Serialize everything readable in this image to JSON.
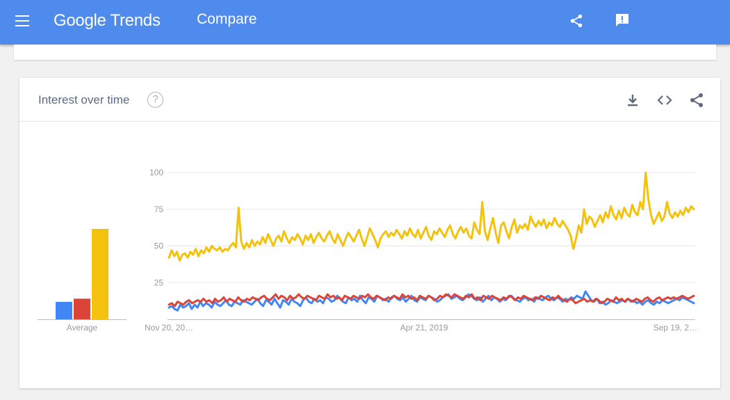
{
  "app": {
    "logo": "Google Trends",
    "page_title": "Compare"
  },
  "card": {
    "title": "Interest over time",
    "help_glyph": "?"
  },
  "icons": {
    "menu": "menu-icon",
    "share": "share-icon",
    "feedback": "feedback-icon",
    "help": "help-icon",
    "download": "download-icon",
    "embed": "embed-icon"
  },
  "colors": {
    "header": "#4f8bed",
    "series_blue": "#4285f4",
    "series_red": "#db4437",
    "series_yellow": "#f4c20d"
  },
  "chart_data": [
    {
      "type": "bar",
      "categories": [
        "",
        "",
        ""
      ],
      "xlabel": "Average",
      "values": [
        11,
        13,
        57
      ],
      "colors": [
        "#4285f4",
        "#db4437",
        "#f4c20d"
      ],
      "ylim": [
        0,
        100
      ]
    },
    {
      "type": "line",
      "x_ticks": [
        "Nov 20, 20…",
        "Apr 21, 2019",
        "Sep 19, 2…"
      ],
      "y_ticks": [
        25,
        50,
        75,
        100
      ],
      "ylim": [
        0,
        100
      ],
      "grid": true,
      "series": [
        {
          "color": "#f4c20d",
          "values": [
            42,
            47,
            43,
            46,
            40,
            44,
            45,
            42,
            46,
            44,
            48,
            43,
            47,
            45,
            49,
            46,
            50,
            48,
            47,
            49,
            46,
            48,
            47,
            50,
            52,
            49,
            76,
            53,
            48,
            52,
            49,
            54,
            50,
            53,
            51,
            56,
            52,
            58,
            54,
            50,
            55,
            57,
            53,
            60,
            55,
            52,
            56,
            54,
            58,
            55,
            51,
            57,
            54,
            58,
            52,
            56,
            59,
            55,
            53,
            57,
            60,
            55,
            52,
            58,
            54,
            50,
            55,
            59,
            56,
            53,
            57,
            61,
            55,
            50,
            56,
            62,
            58,
            54,
            49,
            55,
            58,
            60,
            56,
            59,
            57,
            61,
            58,
            55,
            60,
            57,
            62,
            58,
            56,
            61,
            55,
            59,
            63,
            57,
            54,
            60,
            58,
            62,
            59,
            56,
            61,
            64,
            58,
            55,
            60,
            63,
            59,
            62,
            57,
            55,
            66,
            61,
            58,
            80,
            60,
            54,
            62,
            69,
            59,
            52,
            64,
            66,
            60,
            55,
            63,
            68,
            59,
            64,
            62,
            65,
            61,
            70,
            66,
            63,
            67,
            64,
            68,
            62,
            66,
            64,
            69,
            65,
            63,
            67,
            64,
            61,
            57,
            48,
            55,
            64,
            59,
            75,
            65,
            70,
            68,
            63,
            67,
            71,
            66,
            73,
            69,
            77,
            71,
            68,
            74,
            69,
            76,
            72,
            70,
            78,
            73,
            71,
            80,
            75,
            100,
            82,
            71,
            65,
            69,
            73,
            67,
            70,
            80,
            72,
            69,
            73,
            70,
            74,
            71,
            76,
            73,
            77,
            75
          ]
        },
        {
          "color": "#4285f4",
          "values": [
            8,
            9,
            7,
            6,
            10,
            8,
            9,
            11,
            7,
            10,
            8,
            12,
            9,
            11,
            10,
            8,
            12,
            10,
            9,
            11,
            13,
            10,
            9,
            12,
            11,
            10,
            13,
            12,
            11,
            10,
            12,
            14,
            11,
            9,
            13,
            12,
            10,
            14,
            11,
            8,
            13,
            12,
            10,
            14,
            12,
            11,
            9,
            13,
            15,
            12,
            11,
            14,
            12,
            13,
            11,
            15,
            14,
            12,
            13,
            16,
            14,
            12,
            11,
            15,
            13,
            14,
            12,
            16,
            13,
            11,
            15,
            14,
            12,
            16,
            15,
            13,
            14,
            12,
            15,
            16,
            14,
            13,
            15,
            12,
            14,
            16,
            13,
            12,
            15,
            14,
            13,
            16,
            15,
            14,
            12,
            13,
            15,
            16,
            17,
            14,
            15,
            16,
            14,
            13,
            15,
            17,
            16,
            14,
            13,
            15,
            12,
            14,
            16,
            13,
            15,
            14,
            12,
            14,
            13,
            15,
            16,
            14,
            13,
            12,
            14,
            15,
            13,
            14,
            12,
            15,
            14,
            13,
            15,
            16,
            14,
            13,
            15,
            14,
            12,
            14,
            13,
            15,
            14,
            16,
            15,
            14,
            19,
            16,
            13,
            12,
            14,
            11,
            12,
            10,
            11,
            13,
            12,
            11,
            12,
            13,
            12,
            14,
            12,
            13,
            11,
            12,
            10,
            12,
            13,
            11,
            10,
            12,
            11,
            13,
            12,
            11,
            12,
            13,
            14,
            13,
            15,
            14,
            13,
            12,
            11
          ]
        },
        {
          "color": "#db4437",
          "values": [
            10,
            11,
            9,
            12,
            11,
            10,
            12,
            13,
            11,
            12,
            13,
            12,
            14,
            12,
            13,
            11,
            14,
            12,
            13,
            15,
            12,
            14,
            13,
            12,
            15,
            13,
            12,
            14,
            13,
            15,
            14,
            13,
            15,
            16,
            14,
            13,
            15,
            17,
            14,
            16,
            15,
            13,
            16,
            14,
            15,
            17,
            15,
            14,
            16,
            15,
            14,
            13,
            16,
            15,
            14,
            17,
            15,
            16,
            14,
            15,
            13,
            16,
            15,
            14,
            16,
            15,
            14,
            16,
            15,
            17,
            15,
            14,
            16,
            15,
            14,
            13,
            15,
            14,
            16,
            15,
            14,
            17,
            15,
            16,
            14,
            15,
            13,
            16,
            15,
            14,
            16,
            15,
            13,
            14,
            16,
            15,
            17,
            16,
            15,
            17,
            16,
            15,
            14,
            16,
            15,
            17,
            14,
            15,
            13,
            16,
            15,
            14,
            16,
            15,
            14,
            13,
            15,
            14,
            16,
            15,
            13,
            15,
            14,
            16,
            15,
            14,
            13,
            15,
            14,
            16,
            15,
            14,
            13,
            15,
            14,
            16,
            14,
            13,
            12,
            14,
            13,
            11,
            12,
            13,
            14,
            12,
            13,
            12,
            14,
            13,
            11,
            12,
            14,
            13,
            12,
            15,
            13,
            14,
            12,
            14,
            13,
            12,
            14,
            13,
            12,
            14,
            15,
            13,
            12,
            14,
            15,
            13,
            14,
            15,
            14,
            15,
            14,
            15,
            16,
            15,
            14,
            15,
            16
          ]
        }
      ]
    }
  ]
}
